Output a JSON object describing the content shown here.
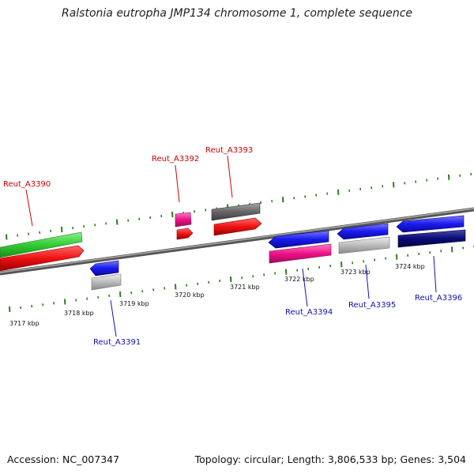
{
  "header": {
    "title": "Ralstonia eutropha JMP134 chromosome 1, complete sequence"
  },
  "footer": {
    "accession": "Accession: NC_007347",
    "summary": "Topology: circular; Length: 3,806,533 bp; Genes: 3,504"
  },
  "axis": {
    "ticks": [
      "3717 kbp",
      "3718 kbp",
      "3719 kbp",
      "3720 kbp",
      "3721 kbp",
      "3722 kbp",
      "3723 kbp",
      "3724 kbp"
    ]
  },
  "genes": [
    {
      "id": "Reut_A3390",
      "strand": "forward",
      "color": "#cc0000"
    },
    {
      "id": "Reut_A3391",
      "strand": "reverse",
      "color": "#1111aa"
    },
    {
      "id": "Reut_A3392",
      "strand": "forward",
      "color": "#cc0000"
    },
    {
      "id": "Reut_A3393",
      "strand": "forward",
      "color": "#cc0000"
    },
    {
      "id": "Reut_A3394",
      "strand": "reverse",
      "color": "#1111aa"
    },
    {
      "id": "Reut_A3395",
      "strand": "reverse",
      "color": "#1111aa"
    },
    {
      "id": "Reut_A3396",
      "strand": "reverse",
      "color": "#1111aa"
    }
  ],
  "colors": {
    "backbone": "#7a7a7a",
    "tick": "#2e7d1e",
    "forward_label": "#cc0000",
    "reverse_label": "#1111aa",
    "cds_red": "#ee1111",
    "cds_blue": "#1a1aee",
    "gene_green": "#33cc33",
    "gene_pink": "#ee1188",
    "gene_gray_dark": "#666666",
    "gene_gray_light": "#bbbbbb",
    "gene_navy": "#0a0a77"
  }
}
